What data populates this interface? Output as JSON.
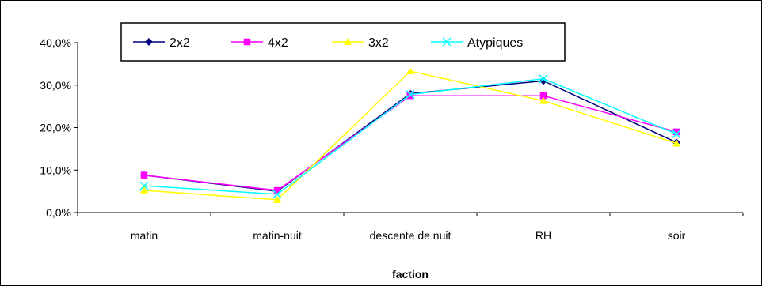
{
  "chart_data": {
    "type": "line",
    "title": "",
    "xlabel": "faction",
    "ylabel": "",
    "categories": [
      "matin",
      "matin-nuit",
      "descente de nuit",
      "RH",
      "soir"
    ],
    "ylim": [
      0,
      40
    ],
    "yticks": [
      "0,0%",
      "10,0%",
      "20,0%",
      "30,0%",
      "40,0%"
    ],
    "grid": "none",
    "legend_position": "top",
    "series": [
      {
        "name": "2x2",
        "values": [
          8.8,
          5.0,
          28.0,
          31.0,
          16.5
        ],
        "color": "#000080",
        "marker": "diamond"
      },
      {
        "name": "4x2",
        "values": [
          8.8,
          5.2,
          27.5,
          27.5,
          19.0
        ],
        "color": "#FF00FF",
        "marker": "square"
      },
      {
        "name": "3x2",
        "values": [
          5.2,
          3.0,
          33.3,
          26.3,
          16.3
        ],
        "color": "#FFFF00",
        "marker": "triangle"
      },
      {
        "name": "Atypiques",
        "values": [
          6.3,
          4.3,
          27.8,
          31.5,
          18.5
        ],
        "color": "#00FFFF",
        "marker": "x"
      }
    ]
  }
}
